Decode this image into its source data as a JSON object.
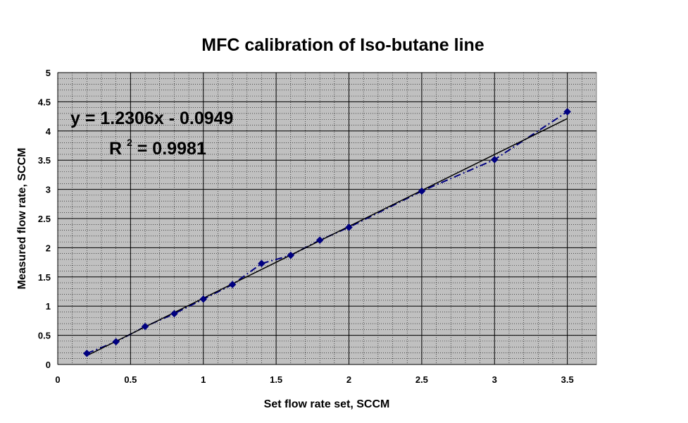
{
  "chart_data": {
    "type": "scatter",
    "title": "MFC calibration of Iso-butane line",
    "xlabel": "Set flow rate set, SCCM",
    "ylabel": "Measured flow rate, SCCM",
    "xlim": [
      0,
      3.7
    ],
    "ylim": [
      0,
      5
    ],
    "x_ticks": [
      "0",
      "0.5",
      "1",
      "1.5",
      "2",
      "2.5",
      "3",
      "3.5"
    ],
    "x_tick_values": [
      0,
      0.5,
      1,
      1.5,
      2,
      2.5,
      3,
      3.5
    ],
    "y_ticks": [
      "0",
      "0.5",
      "1",
      "1.5",
      "2",
      "2.5",
      "3",
      "3.5",
      "4",
      "4.5",
      "5"
    ],
    "y_tick_values": [
      0,
      0.5,
      1,
      1.5,
      2,
      2.5,
      3,
      3.5,
      4,
      4.5,
      5
    ],
    "grid": true,
    "background_color": "#c0c0c0",
    "series": [
      {
        "x": [
          0.2,
          0.4,
          0.6,
          0.8,
          1.0,
          1.2,
          1.4,
          1.6,
          1.8,
          2.0,
          2.5,
          3.0,
          3.5
        ],
        "y": [
          0.19,
          0.39,
          0.65,
          0.87,
          1.12,
          1.37,
          1.73,
          1.87,
          2.13,
          2.35,
          2.97,
          3.51,
          4.33
        ],
        "color": "#000080",
        "line_style": "dash-dot",
        "marker": "diamond"
      }
    ],
    "trendline": {
      "slope": 1.2306,
      "intercept": -0.0949,
      "x_range": [
        0.2,
        3.5
      ],
      "color": "#000000"
    },
    "annotations": {
      "equation": "y = 1.2306x - 0.0949",
      "r2_prefix": "R",
      "r2_superscript": "2",
      "r2_value": " = 0.9981"
    }
  }
}
